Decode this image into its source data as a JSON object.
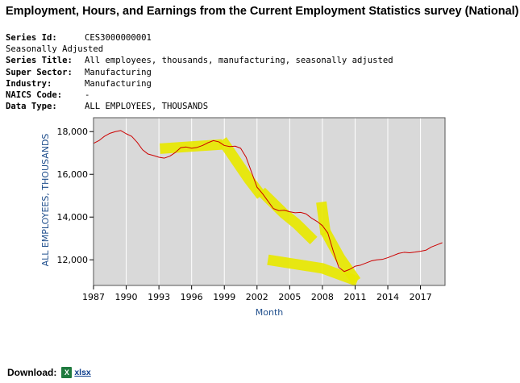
{
  "page": {
    "title": "Employment, Hours, and Earnings from the Current Employment Statistics survey (National)"
  },
  "series_info": {
    "series_id_label": "Series Id:",
    "series_id": "CES3000000001",
    "adjustment": "Seasonally Adjusted",
    "series_title_label": "Series Title:",
    "series_title": "All employees, thousands, manufacturing, seasonally adjusted",
    "super_sector_label": "Super Sector:",
    "super_sector": "Manufacturing",
    "industry_label": "Industry:",
    "industry": "Manufacturing",
    "naics_label": "NAICS Code:",
    "naics": "-",
    "data_type_label": "Data Type:",
    "data_type": "ALL EMPLOYEES, THOUSANDS"
  },
  "download": {
    "label": "Download:",
    "icon": "excel-icon",
    "link_text": "xlsx"
  },
  "colors": {
    "plot_bg": "#d9d9d9",
    "line": "#cc0000",
    "highlight": "#e8e800",
    "axis_text": "#1f4e8c"
  },
  "chart_data": {
    "type": "line",
    "title": "",
    "xlabel": "Month",
    "ylabel": "ALL EMPLOYEES, THOUSANDS",
    "xlim": [
      1987.0,
      2019.25
    ],
    "ylim": [
      10800,
      18650
    ],
    "x_ticks": [
      1987,
      1990,
      1993,
      1996,
      1999,
      2002,
      2005,
      2008,
      2011,
      2014,
      2017
    ],
    "x_tick_labels": [
      "1987",
      "1990",
      "1993",
      "1996",
      "1999",
      "2002",
      "2005",
      "2008",
      "2011",
      "2014",
      "2017"
    ],
    "y_ticks": [
      12000,
      14000,
      16000,
      18000
    ],
    "y_tick_labels": [
      "12,000",
      "14,000",
      "16,000",
      "18,000"
    ],
    "grid": "vertical",
    "series": [
      {
        "x": [
          1987.0,
          1987.5,
          1988.0,
          1988.5,
          1989.0,
          1989.5,
          1990.0,
          1990.5,
          1991.0,
          1991.5,
          1992.0,
          1992.5,
          1993.0,
          1993.5,
          1994.0,
          1994.5,
          1995.0,
          1995.5,
          1996.0,
          1996.5,
          1997.0,
          1997.5,
          1998.0,
          1998.5,
          1999.0,
          1999.5,
          2000.0,
          2000.5,
          2001.0,
          2001.5,
          2002.0,
          2002.5,
          2003.0,
          2003.5,
          2004.0,
          2004.5,
          2005.0,
          2005.5,
          2006.0,
          2006.5,
          2007.0,
          2007.5,
          2008.0,
          2008.5,
          2009.0,
          2009.5,
          2010.0,
          2010.5,
          2011.0,
          2011.5,
          2012.0,
          2012.5,
          2013.0,
          2013.5,
          2014.0,
          2014.5,
          2015.0,
          2015.5,
          2016.0,
          2016.5,
          2017.0,
          2017.5,
          2018.0,
          2018.5,
          2019.0
        ],
        "values": [
          17450,
          17580,
          17780,
          17920,
          18000,
          18050,
          17900,
          17780,
          17500,
          17150,
          16950,
          16880,
          16800,
          16760,
          16850,
          17020,
          17250,
          17280,
          17220,
          17260,
          17350,
          17480,
          17580,
          17520,
          17350,
          17300,
          17320,
          17220,
          16800,
          16100,
          15400,
          15100,
          14750,
          14400,
          14300,
          14320,
          14250,
          14200,
          14220,
          14150,
          13950,
          13800,
          13600,
          13250,
          12400,
          11650,
          11450,
          11550,
          11700,
          11750,
          11850,
          11950,
          12000,
          12020,
          12100,
          12200,
          12300,
          12350,
          12330,
          12360,
          12400,
          12450,
          12600,
          12700,
          12800
        ]
      }
    ],
    "highlight_strokes": [
      {
        "points": [
          [
            1993.1,
            17200
          ],
          [
            1998.8,
            17400
          ]
        ]
      },
      {
        "points": [
          [
            1998.8,
            17600
          ],
          [
            2001.2,
            15800
          ],
          [
            2002.4,
            15000
          ]
        ]
      },
      {
        "points": [
          [
            2002.4,
            15200
          ],
          [
            2004.4,
            14200
          ],
          [
            2005.6,
            13700
          ],
          [
            2007.2,
            12900
          ]
        ]
      },
      {
        "points": [
          [
            2003.0,
            12000
          ],
          [
            2008.0,
            11600
          ],
          [
            2011.2,
            11000
          ]
        ]
      },
      {
        "points": [
          [
            2007.9,
            14700
          ],
          [
            2008.3,
            13200
          ]
        ]
      },
      {
        "points": [
          [
            2008.3,
            13300
          ],
          [
            2009.6,
            12100
          ],
          [
            2011.1,
            11000
          ]
        ]
      }
    ]
  }
}
